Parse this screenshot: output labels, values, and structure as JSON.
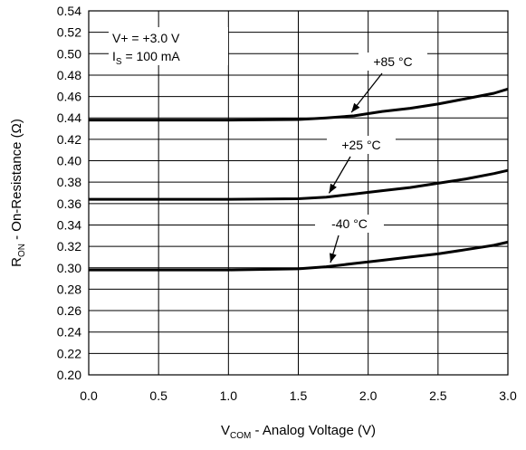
{
  "chart_data": {
    "type": "line",
    "xlabel_main": "V",
    "xlabel_sub": "COM",
    "xlabel_rest": " - Analog Voltage (V)",
    "ylabel_main": "R",
    "ylabel_sub": "ON",
    "ylabel_rest": " - On-Resistance (Ω)",
    "xlim": [
      0.0,
      3.0
    ],
    "ylim": [
      0.2,
      0.54
    ],
    "x_ticks": [
      "0.0",
      "0.5",
      "1.0",
      "1.5",
      "2.0",
      "2.5",
      "3.0"
    ],
    "y_ticks": [
      "0.20",
      "0.22",
      "0.24",
      "0.26",
      "0.28",
      "0.30",
      "0.32",
      "0.34",
      "0.36",
      "0.38",
      "0.40",
      "0.42",
      "0.44",
      "0.46",
      "0.48",
      "0.50",
      "0.52",
      "0.54"
    ],
    "grid": true,
    "conditions": {
      "line1": "V+ = +3.0 V",
      "line2_main": "I",
      "line2_sub": "S",
      "line2_rest": " = 100 mA"
    },
    "series": [
      {
        "name": "+85 °C",
        "x": [
          0.0,
          0.5,
          1.0,
          1.5,
          1.7,
          1.9,
          2.1,
          2.3,
          2.5,
          2.7,
          2.9,
          3.0
        ],
        "y": [
          0.438,
          0.438,
          0.438,
          0.4385,
          0.44,
          0.442,
          0.446,
          0.449,
          0.453,
          0.458,
          0.463,
          0.467
        ]
      },
      {
        "name": "+25 °C",
        "x": [
          0.0,
          0.5,
          1.0,
          1.5,
          1.7,
          1.9,
          2.1,
          2.3,
          2.5,
          2.7,
          2.9,
          3.0
        ],
        "y": [
          0.364,
          0.364,
          0.364,
          0.3645,
          0.366,
          0.369,
          0.372,
          0.375,
          0.379,
          0.383,
          0.388,
          0.391
        ]
      },
      {
        "name": "-40 °C",
        "x": [
          0.0,
          0.5,
          1.0,
          1.5,
          1.7,
          1.9,
          2.1,
          2.3,
          2.5,
          2.7,
          2.9,
          3.0
        ],
        "y": [
          0.298,
          0.298,
          0.298,
          0.299,
          0.301,
          0.304,
          0.307,
          0.31,
          0.313,
          0.317,
          0.321,
          0.324
        ]
      }
    ]
  }
}
